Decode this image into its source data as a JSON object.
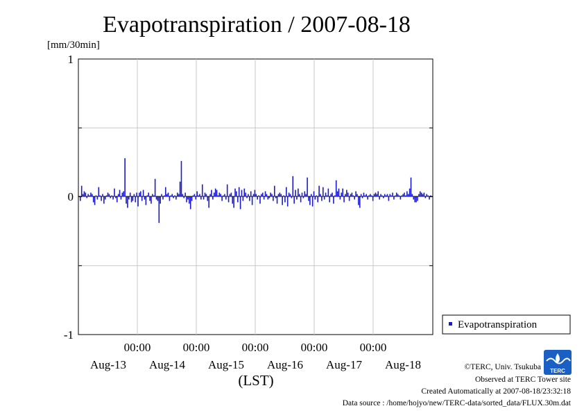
{
  "chart_data": {
    "type": "bar",
    "title": "Evapotranspiration / 2007-08-18",
    "unit_label": "[mm/30min]",
    "xlabel": "(LST)",
    "ylim": [
      -1,
      1
    ],
    "ytick_labels": [
      "1",
      "0",
      "-1"
    ],
    "grid": true,
    "x_time_labels": [
      "00:00",
      "00:00",
      "00:00",
      "00:00",
      "00:00"
    ],
    "x_date_labels": [
      "Aug-13",
      "Aug-14",
      "Aug-15",
      "Aug-16",
      "Aug-17",
      "Aug-18"
    ],
    "legend": {
      "placement": "right-bottom",
      "label": "Evapotranspiration"
    },
    "series": [
      {
        "name": "Evapotranspiration",
        "color": "#1a1acc",
        "values": [
          -0.03,
          0.08,
          0.02,
          0.04,
          0.03,
          -0.01,
          0.02,
          0.01,
          0.03,
          0.02,
          -0.04,
          -0.06,
          0.01,
          -0.02,
          0.07,
          0.01,
          -0.03,
          0.02,
          -0.05,
          -0.02,
          0.01,
          0.03,
          0.02,
          -0.01,
          0.01,
          -0.02,
          0.06,
          -0.01,
          -0.04,
          0.02,
          0.05,
          -0.02,
          0.03,
          0.04,
          0.28,
          -0.05,
          -0.08,
          -0.02,
          0.03,
          -0.04,
          -0.03,
          0.02,
          -0.04,
          0.03,
          -0.07,
          0.03,
          0.04,
          -0.03,
          0.05,
          -0.02,
          -0.06,
          0.01,
          0.03,
          -0.03,
          -0.05,
          0.02,
          0.01,
          0.13,
          -0.02,
          -0.03,
          -0.19,
          -0.05,
          0.02,
          -0.02,
          0.01,
          0.07,
          0.02,
          0.03,
          -0.03,
          0.01,
          0.02,
          -0.01,
          0.01,
          -0.02,
          0.03,
          0.02,
          0.11,
          0.26,
          0.02,
          -0.01,
          0.03,
          -0.04,
          -0.02,
          -0.05,
          -0.09,
          -0.03,
          0.01,
          0.02,
          -0.02,
          0.04,
          0.01,
          0.02,
          -0.02,
          0.09,
          -0.02,
          0.03,
          0.02,
          -0.03,
          -0.08,
          0.02,
          0.05,
          -0.02,
          0.03,
          0.06,
          0.05,
          0.01,
          0.03,
          0.02,
          -0.03,
          0.01,
          0.02,
          -0.02,
          0.09,
          -0.04,
          0.02,
          0.03,
          -0.05,
          -0.08,
          0.06,
          0.04,
          -0.04,
          0.07,
          -0.09,
          0.05,
          -0.03,
          0.06,
          0.03,
          -0.01,
          0.02,
          -0.03,
          0.04,
          -0.06,
          0.02,
          0.05,
          0.02,
          -0.02,
          0.01,
          -0.05,
          0.02,
          0.03,
          -0.02,
          0.04,
          0.02,
          -0.02,
          -0.01,
          0.03,
          0.02,
          -0.03,
          0.08,
          -0.01,
          -0.05,
          0.02,
          0.03,
          0.02,
          -0.06,
          0.01,
          -0.04,
          0.07,
          -0.07,
          0.03,
          0.02,
          -0.01,
          0.15,
          -0.05,
          0.05,
          -0.02,
          0.06,
          0.02,
          -0.04,
          0.03,
          -0.01,
          0.04,
          0.02,
          0.14,
          -0.03,
          -0.06,
          0.02,
          -0.07,
          0.04,
          -0.02,
          0.01,
          -0.04,
          0.08,
          0.02,
          -0.03,
          0.07,
          -0.02,
          0.03,
          0.01,
          0.06,
          -0.04,
          0.02,
          0.03,
          -0.05,
          0.01,
          0.12,
          0.04,
          0.06,
          -0.02,
          0.03,
          0.06,
          -0.04,
          0.02,
          0.05,
          0.03,
          -0.03,
          0.02,
          0.03,
          0.01,
          -0.02,
          0.04,
          0.02,
          -0.06,
          -0.08,
          0.02,
          -0.01,
          0.03,
          0.01,
          0.02,
          -0.02,
          0.01,
          0.02,
          0.01,
          -0.03,
          0.02,
          0.03,
          0.02,
          0.04,
          -0.02,
          0.02,
          0.01,
          -0.01,
          0.02,
          0.01,
          0.02,
          -0.03,
          0.02,
          0.01,
          0.03,
          -0.02,
          0.01,
          0.03,
          0.02,
          0.01,
          -0.02,
          0.01,
          0.02,
          0.03,
          0.01,
          0.04,
          0.02,
          0.06,
          0.14,
          0.02,
          -0.02,
          -0.04,
          -0.04,
          -0.03,
          0.02,
          0.04,
          0.03,
          0.02,
          0.03,
          -0.01,
          0.02,
          0.01,
          -0.02,
          0.01
        ]
      }
    ]
  },
  "credits": {
    "copyright": "©TERC, Univ. Tsukuba",
    "observed": "Observed at TERC Tower site",
    "created": "Created Automatically at 2007-08-18/23:32:18",
    "source": "Data source : /home/hojyo/new/TERC-data/sorted_data/FLUX.30m.dat"
  },
  "logo": {
    "text": "TERC",
    "color": "#1a5fc4"
  }
}
